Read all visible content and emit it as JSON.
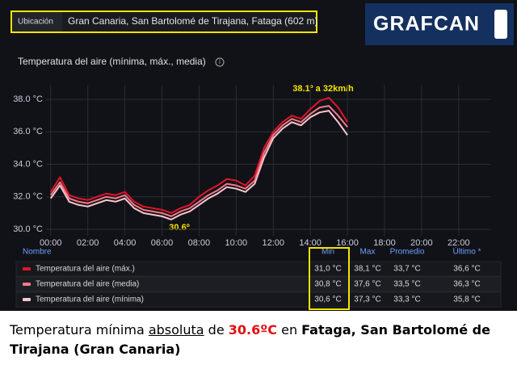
{
  "header": {
    "location_label": "Ubicación",
    "location": "Gran Canaria, San Bartolomé de Tirajana, Fataga (602 m)",
    "logo": "GRAFCAN"
  },
  "chart_data": {
    "type": "line",
    "title": "Temperatura del aire (mínima, máx., media)",
    "x": [
      0,
      0.5,
      1,
      1.5,
      2,
      2.5,
      3,
      3.5,
      4,
      4.5,
      5,
      5.5,
      6,
      6.5,
      7,
      7.5,
      8,
      8.5,
      9,
      9.5,
      10,
      10.5,
      11,
      11.5,
      12,
      12.5,
      13,
      13.5,
      14,
      14.5,
      15,
      15.5,
      16
    ],
    "series": [
      {
        "name": "Temperatura del aire (máx.)",
        "color": "#e0162b",
        "values": [
          32.3,
          33.2,
          32.1,
          31.9,
          31.8,
          32.0,
          32.2,
          32.1,
          32.3,
          31.7,
          31.4,
          31.3,
          31.2,
          31.0,
          31.3,
          31.5,
          32.0,
          32.4,
          32.7,
          33.1,
          33.0,
          32.7,
          33.3,
          35.0,
          36.0,
          36.6,
          37.0,
          36.8,
          37.4,
          37.9,
          38.1,
          37.5,
          36.6
        ]
      },
      {
        "name": "Temperatura del aire (media)",
        "color": "#f47a8b",
        "values": [
          32.1,
          32.9,
          31.9,
          31.7,
          31.6,
          31.8,
          32.0,
          31.9,
          32.1,
          31.5,
          31.2,
          31.1,
          31.0,
          30.8,
          31.1,
          31.3,
          31.7,
          32.1,
          32.4,
          32.8,
          32.7,
          32.5,
          33.0,
          34.7,
          35.8,
          36.4,
          36.8,
          36.6,
          37.1,
          37.5,
          37.6,
          37.0,
          36.3
        ]
      },
      {
        "name": "Temperatura del aire (mínima)",
        "color": "#fbc6cf",
        "values": [
          31.9,
          32.7,
          31.7,
          31.5,
          31.4,
          31.6,
          31.8,
          31.7,
          31.9,
          31.3,
          31.0,
          30.9,
          30.8,
          30.6,
          30.9,
          31.1,
          31.5,
          31.9,
          32.2,
          32.6,
          32.5,
          32.3,
          32.8,
          34.4,
          35.6,
          36.2,
          36.6,
          36.4,
          36.9,
          37.2,
          37.3,
          36.6,
          35.8
        ]
      }
    ],
    "xlim": [
      -0.25,
      23.75
    ],
    "xticks": [
      {
        "value": 0,
        "label": "00:00"
      },
      {
        "value": 2,
        "label": "02:00"
      },
      {
        "value": 4,
        "label": "04:00"
      },
      {
        "value": 6,
        "label": "06:00"
      },
      {
        "value": 8,
        "label": "08:00"
      },
      {
        "value": 10,
        "label": "10:00"
      },
      {
        "value": 12,
        "label": "12:00"
      },
      {
        "value": 14,
        "label": "14:00"
      },
      {
        "value": 16,
        "label": "16:00"
      },
      {
        "value": 18,
        "label": "18:00"
      },
      {
        "value": 20,
        "label": "20:00"
      },
      {
        "value": 22,
        "label": "22:00"
      }
    ],
    "ylim": [
      29.6,
      38.9
    ],
    "yticks": [
      {
        "value": 30,
        "label": "30.0 °C"
      },
      {
        "value": 32,
        "label": "32.0 °C"
      },
      {
        "value": 34,
        "label": "34.0 °C"
      },
      {
        "value": 36,
        "label": "36.0 °C"
      },
      {
        "value": 38,
        "label": "38.0 °C"
      }
    ],
    "grid": true,
    "annotations": [
      "38.1º a 32km/h",
      "30.6º"
    ],
    "legend_table": {
      "columns": [
        "Nombre",
        "Min",
        "Max",
        "Promedio",
        "Último *"
      ],
      "rows": [
        [
          "31,0 °C",
          "38,1 °C",
          "33,7 °C",
          "36,6 °C"
        ],
        [
          "30,8 °C",
          "37,6 °C",
          "33,5 °C",
          "36,3 °C"
        ],
        [
          "30,6 °C",
          "37,3 °C",
          "33,3 °C",
          "35,8 °C"
        ]
      ]
    }
  },
  "caption": {
    "segments": [
      "Temperatura mínima ",
      "absoluta",
      " de ",
      "30.6ºC",
      " en ",
      "Fataga, San Bartolomé de Tirajana (Gran Canaria)"
    ]
  }
}
